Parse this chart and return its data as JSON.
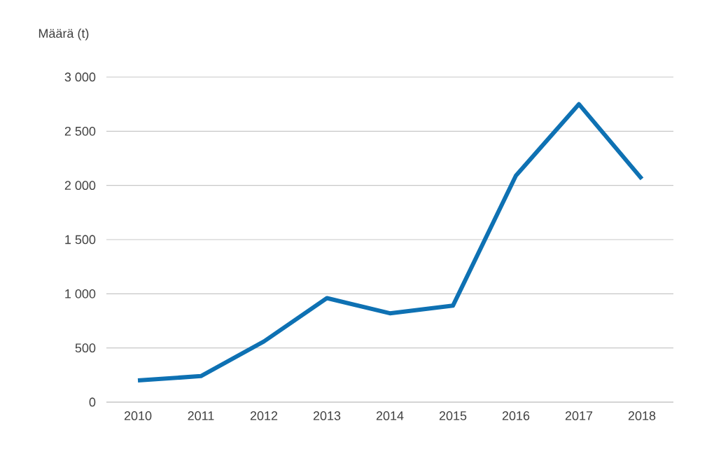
{
  "chart_data": {
    "type": "line",
    "ylabel": "Määrä (t)",
    "categories": [
      "2010",
      "2011",
      "2012",
      "2013",
      "2014",
      "2015",
      "2016",
      "2017",
      "2018"
    ],
    "series": [
      {
        "color": "#0e71b3",
        "values": [
          200,
          240,
          560,
          960,
          820,
          890,
          2090,
          2750,
          2060
        ]
      }
    ],
    "ylim": [
      0,
      3000
    ],
    "yticks": [
      {
        "value": 0,
        "label": "0"
      },
      {
        "value": 500,
        "label": "500"
      },
      {
        "value": 1000,
        "label": "1 000"
      },
      {
        "value": 1500,
        "label": "1 500"
      },
      {
        "value": 2000,
        "label": "2 000"
      },
      {
        "value": 2500,
        "label": "2 500"
      },
      {
        "value": 3000,
        "label": "3 000"
      }
    ],
    "grid": "y",
    "marker": "none",
    "line_style": "solid"
  }
}
